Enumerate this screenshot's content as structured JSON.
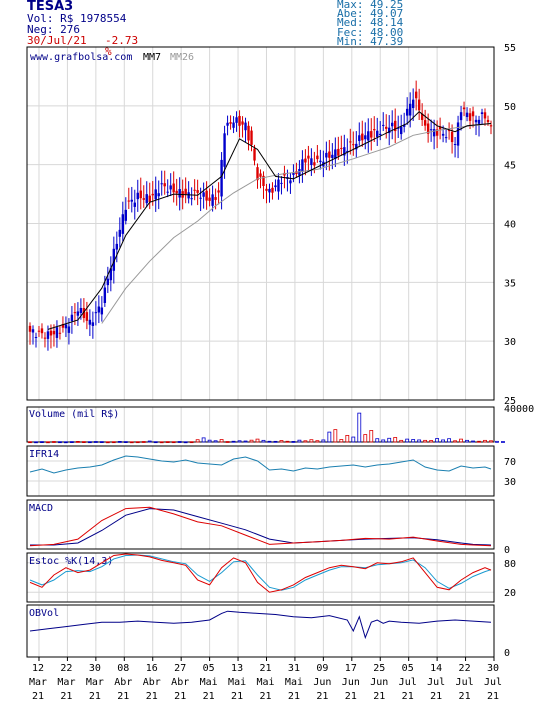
{
  "header": {
    "symbol": "TESA3",
    "volume": "Vol: R$ 1978554",
    "trades": "Neg: 276",
    "date": "30/Jul/21",
    "change": "-2.73 %",
    "stats": [
      {
        "label": "Max:",
        "value": "49.25"
      },
      {
        "label": "Abe:",
        "value": "49.07"
      },
      {
        "label": "Med:",
        "value": "48.14"
      },
      {
        "label": "Fec:",
        "value": "48.00"
      },
      {
        "label": "Min:",
        "value": "47.39"
      }
    ]
  },
  "colors": {
    "up": "#0000cc",
    "down": "#dd0000",
    "mm7": "#000000",
    "mm26": "#999999",
    "ifr": "#1a7fb0",
    "macd": "#000088",
    "signal": "#dd0000",
    "stoch_k": "#dd0000",
    "stoch_d": "#1a9ad0",
    "obv": "#000088",
    "grid": "#d8d8d8",
    "frame": "#000000",
    "label_blue": "#000088"
  },
  "chart_data": [
    {
      "type": "candlestick",
      "watermark": "www.grafbolsa.com",
      "legend": [
        "MM7",
        "MM26"
      ],
      "ylim": [
        25,
        55
      ],
      "y_ticks": [
        25,
        30,
        35,
        40,
        45,
        50,
        55
      ],
      "x_ticks": [
        {
          "day": "12",
          "month": "Mar",
          "year": "21"
        },
        {
          "day": "22",
          "month": "Mar",
          "year": "21"
        },
        {
          "day": "30",
          "month": "Mar",
          "year": "21"
        },
        {
          "day": "08",
          "month": "Abr",
          "year": "21"
        },
        {
          "day": "16",
          "month": "Abr",
          "year": "21"
        },
        {
          "day": "27",
          "month": "Abr",
          "year": "21"
        },
        {
          "day": "05",
          "month": "Mai",
          "year": "21"
        },
        {
          "day": "13",
          "month": "Mai",
          "year": "21"
        },
        {
          "day": "21",
          "month": "Mai",
          "year": "21"
        },
        {
          "day": "31",
          "month": "Mai",
          "year": "21"
        },
        {
          "day": "09",
          "month": "Jun",
          "year": "21"
        },
        {
          "day": "17",
          "month": "Jun",
          "year": "21"
        },
        {
          "day": "25",
          "month": "Jun",
          "year": "21"
        },
        {
          "day": "05",
          "month": "Jul",
          "year": "21"
        },
        {
          "day": "14",
          "month": "Jul",
          "year": "21"
        },
        {
          "day": "22",
          "month": "Jul",
          "year": "21"
        },
        {
          "day": "30",
          "month": "Jul",
          "year": "21"
        }
      ],
      "close_path": [
        [
          0,
          30.8
        ],
        [
          6,
          30.5
        ],
        [
          12,
          31.2
        ],
        [
          16,
          32.8
        ],
        [
          20,
          31.5
        ],
        [
          24,
          33.2
        ],
        [
          28,
          37.5
        ],
        [
          32,
          41.5
        ],
        [
          36,
          42.3
        ],
        [
          40,
          42.1
        ],
        [
          44,
          43.2
        ],
        [
          48,
          42.8
        ],
        [
          52,
          42.4
        ],
        [
          56,
          42.6
        ],
        [
          60,
          42.0
        ],
        [
          63,
          42.5
        ],
        [
          65,
          48.0
        ],
        [
          68,
          48.8
        ],
        [
          72,
          48.3
        ],
        [
          74,
          46.5
        ],
        [
          76,
          44.0
        ],
        [
          80,
          42.6
        ],
        [
          84,
          43.8
        ],
        [
          88,
          44.0
        ],
        [
          92,
          45.5
        ],
        [
          96,
          45.2
        ],
        [
          100,
          45.8
        ],
        [
          104,
          46.2
        ],
        [
          108,
          46.8
        ],
        [
          112,
          47.5
        ],
        [
          116,
          47.8
        ],
        [
          120,
          48.3
        ],
        [
          124,
          48.0
        ],
        [
          126,
          49.5
        ],
        [
          128,
          50.8
        ],
        [
          130,
          49.8
        ],
        [
          132,
          48.0
        ],
        [
          136,
          47.8
        ],
        [
          140,
          47.5
        ],
        [
          142,
          46.8
        ],
        [
          144,
          49.8
        ],
        [
          148,
          48.8
        ],
        [
          152,
          49.2
        ],
        [
          154,
          48.0
        ]
      ],
      "mm7_path": [
        [
          6,
          31.0
        ],
        [
          16,
          31.8
        ],
        [
          24,
          34.5
        ],
        [
          32,
          39.0
        ],
        [
          40,
          41.8
        ],
        [
          48,
          42.5
        ],
        [
          56,
          42.4
        ],
        [
          64,
          44.0
        ],
        [
          70,
          47.2
        ],
        [
          76,
          46.3
        ],
        [
          82,
          44.0
        ],
        [
          88,
          43.8
        ],
        [
          96,
          44.8
        ],
        [
          104,
          45.8
        ],
        [
          112,
          46.8
        ],
        [
          120,
          47.8
        ],
        [
          126,
          48.5
        ],
        [
          130,
          49.5
        ],
        [
          136,
          48.3
        ],
        [
          142,
          47.8
        ],
        [
          146,
          48.3
        ],
        [
          154,
          48.5
        ]
      ],
      "mm26_path": [
        [
          24,
          31.5
        ],
        [
          32,
          34.5
        ],
        [
          40,
          36.8
        ],
        [
          48,
          38.8
        ],
        [
          56,
          40.2
        ],
        [
          62,
          41.5
        ],
        [
          68,
          42.6
        ],
        [
          76,
          43.8
        ],
        [
          84,
          44.2
        ],
        [
          96,
          44.6
        ],
        [
          108,
          45.5
        ],
        [
          120,
          46.5
        ],
        [
          128,
          47.5
        ],
        [
          136,
          47.9
        ],
        [
          144,
          48.2
        ],
        [
          154,
          48.5
        ]
      ]
    },
    {
      "type": "bar",
      "title": "Volume (mil R$)",
      "ylim": [
        0,
        40000
      ],
      "y_ticks": [
        40000
      ],
      "values": [
        400,
        300,
        500,
        300,
        600,
        400,
        300,
        500,
        700,
        500,
        400,
        600,
        500,
        300,
        400,
        700,
        500,
        300,
        400,
        600,
        1200,
        400,
        300,
        500,
        400,
        600,
        300,
        400,
        2800,
        5000,
        2200,
        1500,
        3000,
        600,
        900,
        1500,
        1200,
        2200,
        3500,
        2000,
        900,
        800,
        1800,
        900,
        700,
        2200,
        1500,
        2800,
        1600,
        2500,
        12000,
        15000,
        3000,
        8000,
        6000,
        35000,
        9000,
        14000,
        4000,
        2500,
        4500,
        5500,
        2000,
        3500,
        3000,
        2500,
        2000,
        1800,
        4200,
        2500,
        4000,
        1500,
        3500,
        2000,
        1200,
        900,
        2000,
        1500,
        800,
        600
      ]
    },
    {
      "type": "line",
      "title": "IFR14",
      "ylim": [
        0,
        100
      ],
      "y_ticks": [
        30,
        70
      ],
      "x": [
        0,
        4,
        8,
        12,
        16,
        20,
        24,
        28,
        32,
        36,
        40,
        44,
        48,
        52,
        56,
        60,
        64,
        68,
        72,
        76,
        80,
        84,
        88,
        92,
        96,
        100,
        104,
        108,
        112,
        116,
        120,
        124,
        128,
        132,
        136,
        140,
        144,
        148,
        152,
        154
      ],
      "values": [
        48,
        54,
        46,
        52,
        56,
        58,
        62,
        72,
        80,
        78,
        74,
        70,
        68,
        72,
        66,
        64,
        62,
        74,
        78,
        70,
        52,
        54,
        50,
        56,
        54,
        58,
        60,
        62,
        58,
        62,
        64,
        68,
        72,
        58,
        52,
        50,
        60,
        56,
        58,
        54
      ]
    },
    {
      "type": "line",
      "title": "MACD",
      "x": [
        0,
        8,
        16,
        24,
        32,
        40,
        48,
        56,
        64,
        72,
        80,
        88,
        96,
        104,
        112,
        120,
        128,
        136,
        144,
        148,
        154
      ],
      "series": [
        {
          "values": [
            0.2,
            0.4,
            1.2,
            4.0,
            5.8,
            6.0,
            5.0,
            3.8,
            3.2,
            1.8,
            0.4,
            0.6,
            0.8,
            1.0,
            1.3,
            1.2,
            1.5,
            0.9,
            0.4,
            0.3,
            0.2
          ]
        },
        {
          "values": [
            0.3,
            0.3,
            0.6,
            2.5,
            4.8,
            5.8,
            5.6,
            4.6,
            3.6,
            2.6,
            1.2,
            0.6,
            0.8,
            1.0,
            1.2,
            1.3,
            1.4,
            1.1,
            0.6,
            0.4,
            0.3
          ]
        }
      ]
    },
    {
      "type": "line",
      "title": "Estoc %K(14,3)",
      "ylim": [
        0,
        100
      ],
      "y_ticks": [
        20,
        80
      ],
      "x": [
        0,
        4,
        8,
        12,
        16,
        20,
        24,
        28,
        32,
        36,
        40,
        44,
        48,
        52,
        56,
        60,
        64,
        68,
        72,
        76,
        80,
        84,
        88,
        92,
        96,
        100,
        104,
        108,
        112,
        116,
        120,
        124,
        128,
        132,
        136,
        140,
        144,
        148,
        152,
        154
      ],
      "series": [
        {
          "values": [
            40,
            30,
            55,
            70,
            60,
            65,
            80,
            95,
            98,
            96,
            92,
            85,
            80,
            75,
            45,
            35,
            70,
            90,
            80,
            40,
            20,
            25,
            35,
            50,
            60,
            70,
            75,
            72,
            68,
            80,
            78,
            82,
            90,
            60,
            30,
            25,
            45,
            60,
            70,
            65
          ]
        },
        {
          "values": [
            45,
            35,
            45,
            62,
            64,
            62,
            72,
            88,
            95,
            96,
            94,
            88,
            82,
            78,
            55,
            42,
            60,
            82,
            84,
            55,
            30,
            24,
            30,
            45,
            55,
            65,
            72,
            72,
            70,
            76,
            78,
            80,
            86,
            70,
            42,
            28,
            38,
            52,
            62,
            66
          ]
        }
      ]
    },
    {
      "type": "line",
      "title": "OBVol",
      "y_ticks": [
        0
      ],
      "x": [
        0,
        6,
        12,
        18,
        24,
        30,
        36,
        42,
        48,
        54,
        60,
        64,
        66,
        70,
        76,
        82,
        88,
        94,
        100,
        106,
        108,
        110,
        112,
        114,
        116,
        118,
        120,
        124,
        130,
        136,
        142,
        148,
        154
      ],
      "values": [
        20,
        22,
        24,
        26,
        28,
        28,
        29,
        28,
        27,
        28,
        30,
        36,
        38,
        37,
        36,
        35,
        33,
        32,
        34,
        30,
        20,
        33,
        14,
        28,
        30,
        27,
        29,
        28,
        27,
        29,
        30,
        29,
        28
      ]
    }
  ]
}
